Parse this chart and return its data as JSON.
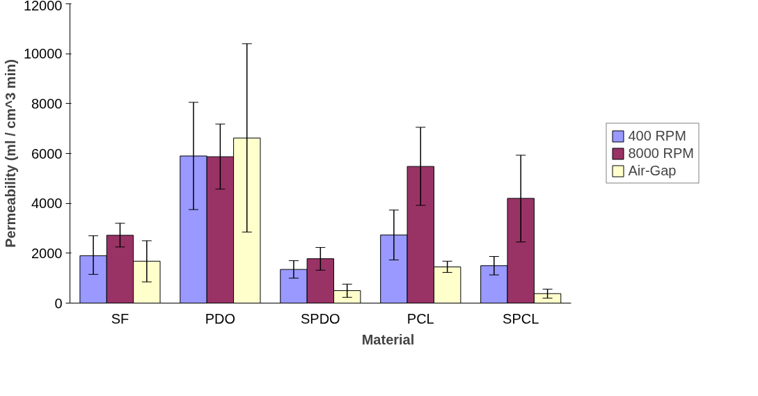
{
  "chart_data": {
    "type": "bar",
    "xlabel": "Material",
    "ylabel": "Permeability (ml / cm^3 min)",
    "categories": [
      "SF",
      "PDO",
      "SPDO",
      "PCL",
      "SPCL"
    ],
    "series": [
      {
        "name": "400 RPM",
        "color": "#9999ff",
        "values": [
          1900,
          5900,
          1350,
          2730,
          1500
        ],
        "errors": [
          [
            1150,
            2700
          ],
          [
            3750,
            8050
          ],
          [
            1000,
            1700
          ],
          [
            1730,
            3730
          ],
          [
            1130,
            1870
          ]
        ]
      },
      {
        "name": "8000 RPM",
        "color": "#993366",
        "values": [
          2720,
          5870,
          1780,
          5480,
          4200
        ],
        "errors": [
          [
            2250,
            3200
          ],
          [
            4570,
            7180
          ],
          [
            1320,
            2230
          ],
          [
            3920,
            7050
          ],
          [
            2450,
            5930
          ]
        ]
      },
      {
        "name": "Air-Gap",
        "color": "#ffffcc",
        "values": [
          1680,
          6620,
          500,
          1450,
          380
        ],
        "errors": [
          [
            850,
            2500
          ],
          [
            2850,
            10400
          ],
          [
            230,
            760
          ],
          [
            1230,
            1680
          ],
          [
            200,
            560
          ]
        ]
      }
    ],
    "ylim": [
      0,
      12000
    ],
    "yticks": [
      0,
      2000,
      4000,
      6000,
      8000,
      10000,
      12000
    ],
    "grid": false,
    "legend": "right"
  }
}
